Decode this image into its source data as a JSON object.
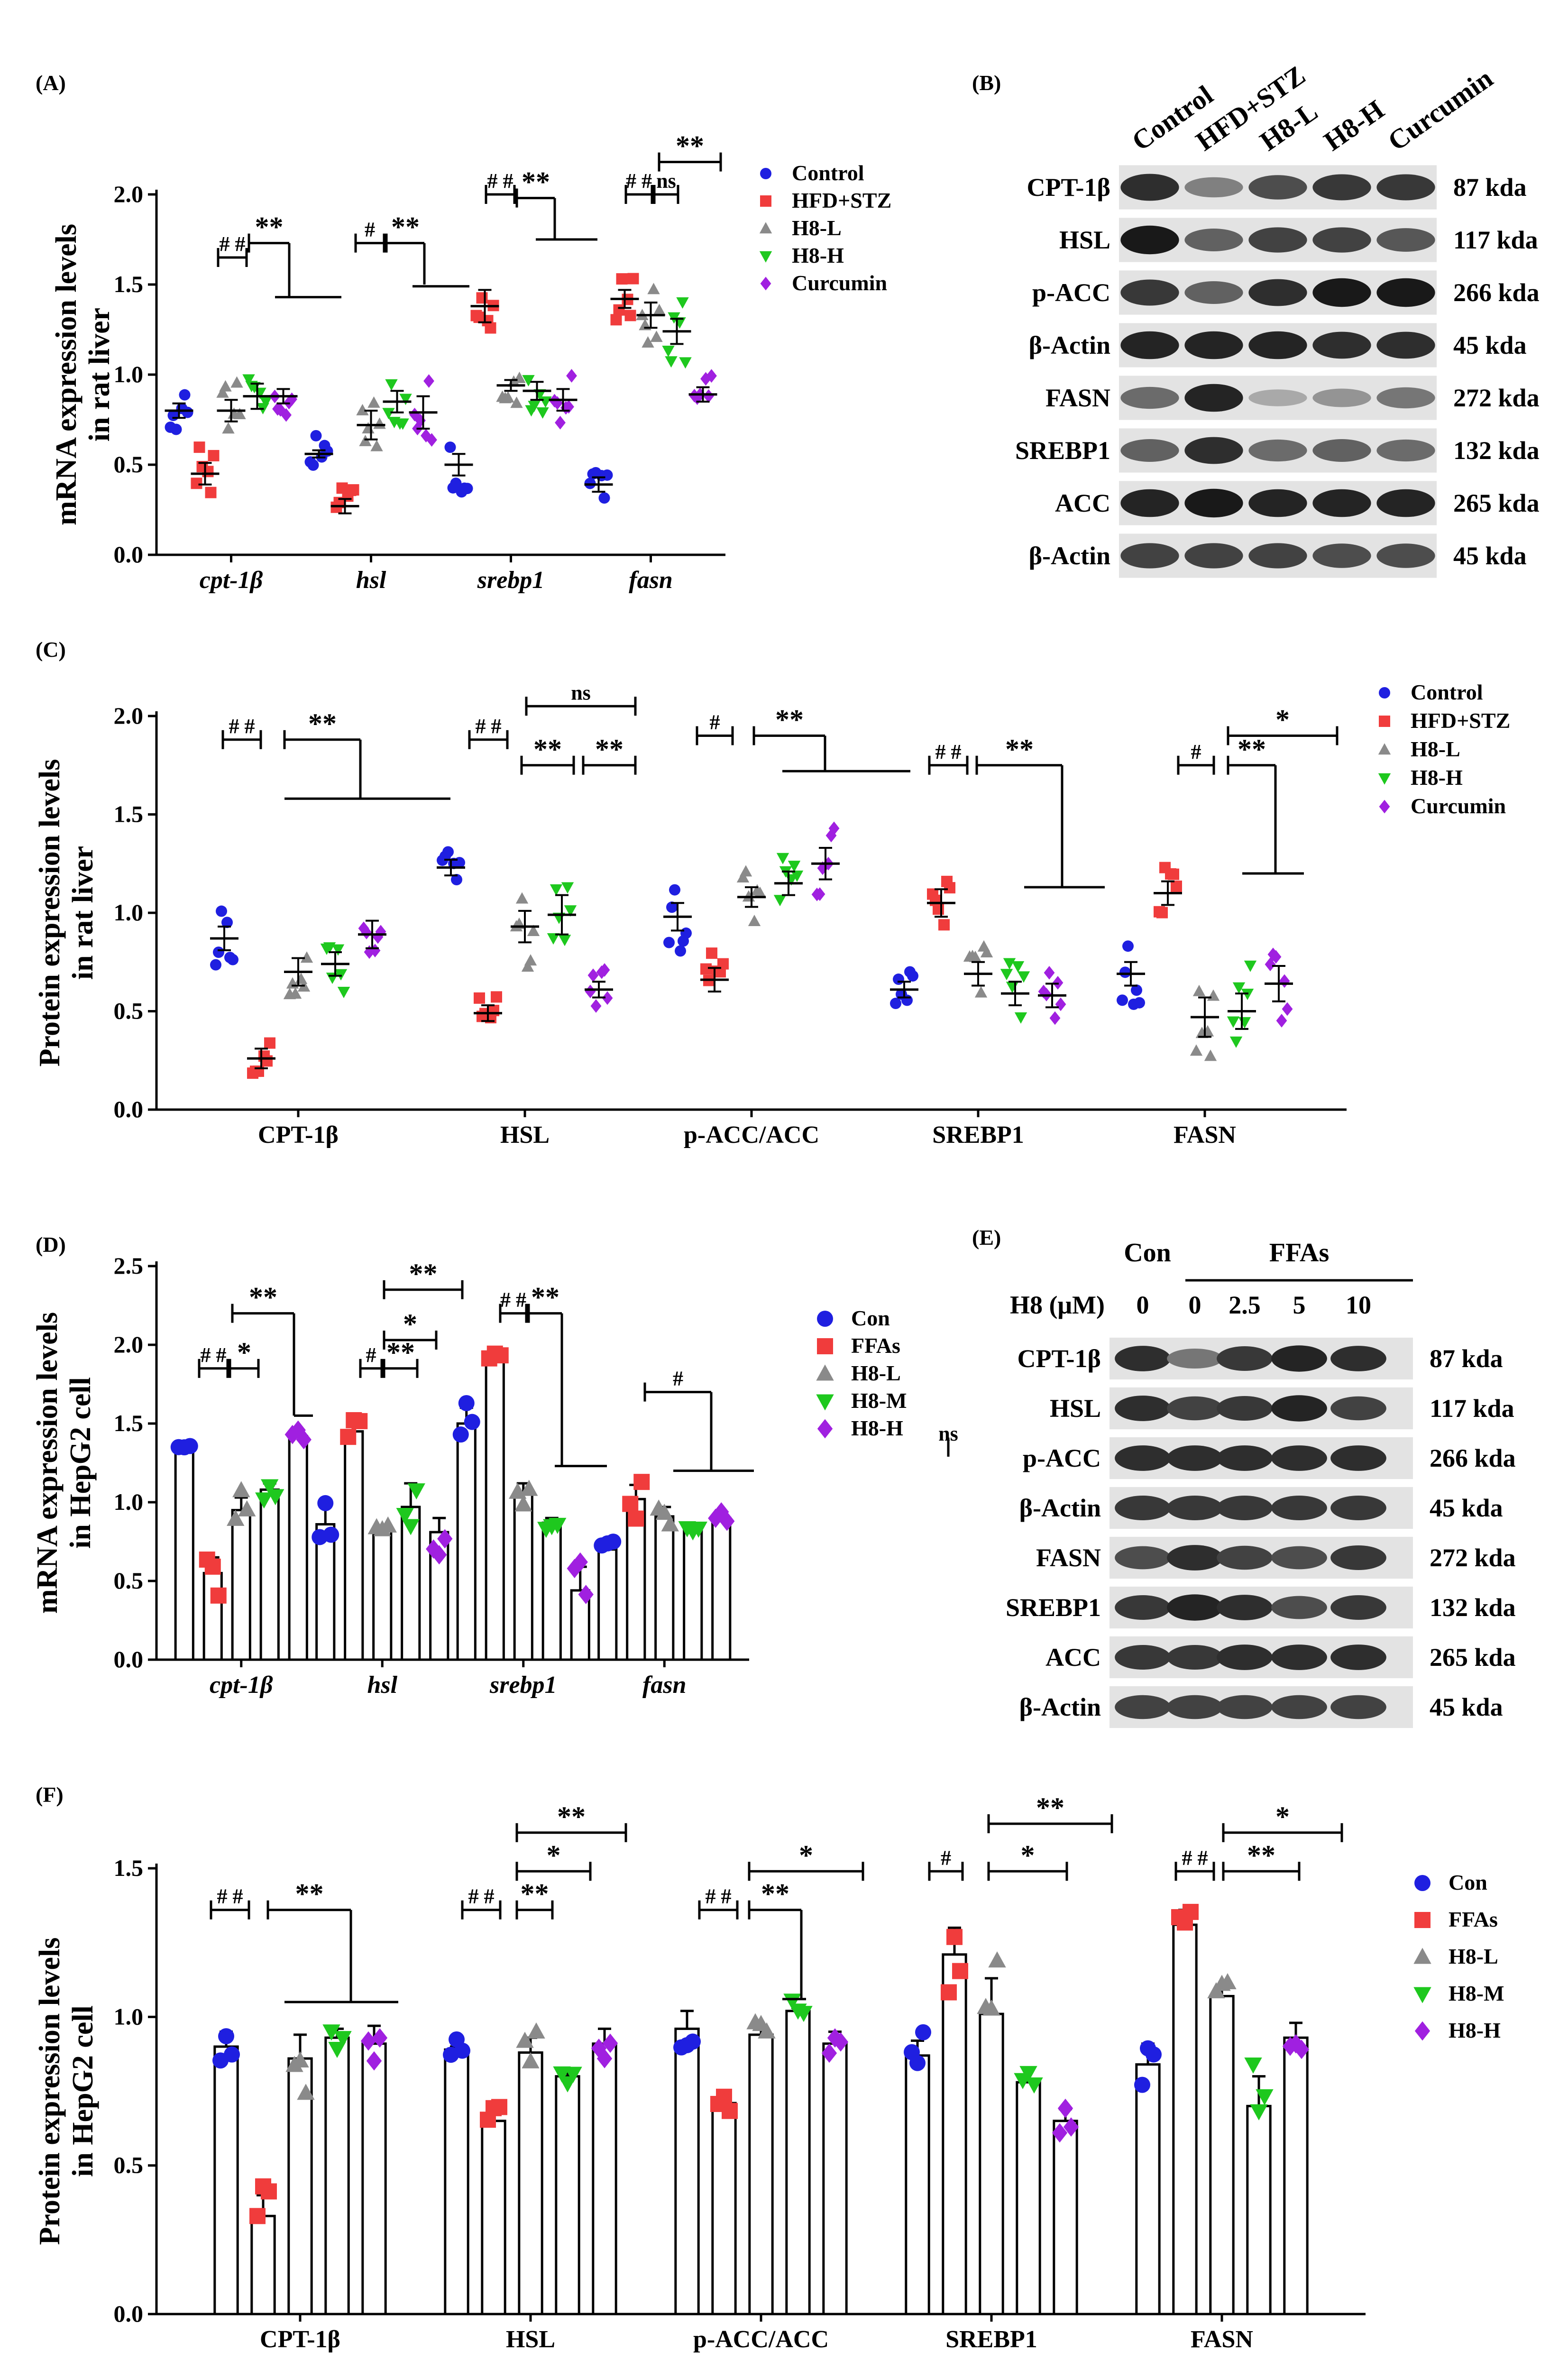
{
  "colors": {
    "control": "#1f1fe0",
    "model": "#f03c3c",
    "low": "#8a8a8a",
    "mid": "#1ec81e",
    "high": "#a020e0"
  },
  "chart_data": [
    {
      "panel": "(A)",
      "type": "scatter",
      "ylabel": [
        "mRNA expression levels",
        "in rat liver"
      ],
      "ylim": [
        0,
        2.0
      ],
      "yticks": [
        "0.0",
        "0.5",
        "1.0",
        "1.5",
        "2.0"
      ],
      "categories": [
        "cpt-1β",
        "hsl",
        "srebp1",
        "fasn"
      ],
      "groups": [
        "Control",
        "HFD+STZ",
        "H8-L",
        "H8-H",
        "Curcumin"
      ],
      "means": [
        [
          0.8,
          0.45,
          0.8,
          0.88,
          0.88
        ],
        [
          0.56,
          0.27,
          0.72,
          0.85,
          0.79
        ],
        [
          0.5,
          1.38,
          0.94,
          0.91,
          0.86
        ],
        [
          0.39,
          1.42,
          1.33,
          1.24,
          0.89
        ]
      ],
      "errs": [
        [
          0.04,
          0.06,
          0.06,
          0.07,
          0.04
        ],
        [
          0.02,
          0.04,
          0.08,
          0.06,
          0.09
        ],
        [
          0.06,
          0.09,
          0.03,
          0.05,
          0.06
        ],
        [
          0.04,
          0.05,
          0.07,
          0.07,
          0.04
        ]
      ]
    },
    {
      "panel": "(C)",
      "type": "scatter",
      "ylabel": [
        "Protein expression levels",
        "in rat liver"
      ],
      "ylim": [
        0,
        2.0
      ],
      "yticks": [
        "0.0",
        "0.5",
        "1.0",
        "1.5",
        "2.0"
      ],
      "categories": [
        "CPT-1β",
        "HSL",
        "p-ACC/ACC",
        "SREBP1",
        "FASN"
      ],
      "groups": [
        "Control",
        "HFD+STZ",
        "H8-L",
        "H8-H",
        "Curcumin"
      ],
      "means": [
        [
          0.87,
          0.26,
          0.7,
          0.74,
          0.89
        ],
        [
          1.23,
          0.49,
          0.93,
          0.99,
          0.61
        ],
        [
          0.98,
          0.66,
          1.08,
          1.15,
          1.25
        ],
        [
          0.61,
          1.05,
          0.69,
          0.59,
          0.58
        ],
        [
          0.69,
          1.1,
          0.47,
          0.5,
          0.64
        ]
      ],
      "errs": [
        [
          0.06,
          0.05,
          0.07,
          0.06,
          0.07
        ],
        [
          0.04,
          0.04,
          0.08,
          0.1,
          0.04
        ],
        [
          0.07,
          0.06,
          0.05,
          0.06,
          0.08
        ],
        [
          0.04,
          0.07,
          0.06,
          0.06,
          0.06
        ],
        [
          0.06,
          0.06,
          0.1,
          0.09,
          0.09
        ]
      ]
    },
    {
      "panel": "(D)",
      "type": "bar",
      "ylabel": [
        "mRNA expression levels",
        "in HepG2 cell"
      ],
      "ylim": [
        0,
        2.5
      ],
      "yticks": [
        "0.0",
        "0.5",
        "1.0",
        "1.5",
        "2.0",
        "2.5"
      ],
      "categories": [
        "cpt-1β",
        "hsl",
        "srebp1",
        "fasn"
      ],
      "groups": [
        "Con",
        "FFAs",
        "H8-L",
        "H8-M",
        "H8-H"
      ],
      "means": [
        [
          1.32,
          0.55,
          0.95,
          1.08,
          1.42
        ],
        [
          0.86,
          1.45,
          0.82,
          0.97,
          0.81
        ],
        [
          1.5,
          1.92,
          1.05,
          0.87,
          0.44
        ],
        [
          0.7,
          1.02,
          0.91,
          0.82,
          0.9
        ]
      ],
      "errs": [
        [
          0.02,
          0.1,
          0.08,
          0.04,
          0.03
        ],
        [
          0.12,
          0.05,
          0.03,
          0.15,
          0.09
        ],
        [
          0.1,
          0.05,
          0.07,
          0.03,
          0.15
        ],
        [
          0.05,
          0.09,
          0.06,
          0.04,
          0.03
        ]
      ]
    },
    {
      "panel": "(F)",
      "type": "bar",
      "ylabel": [
        "Protein expression levels",
        "in HepG2 cell"
      ],
      "ylim": [
        0,
        1.5
      ],
      "yticks": [
        "0.0",
        "0.5",
        "1.0",
        "1.5"
      ],
      "categories": [
        "CPT-1β",
        "HSL",
        "p-ACC/ACC",
        "SREBP1",
        "FASN"
      ],
      "groups": [
        "Con",
        "FFAs",
        "H8-L",
        "H8-M",
        "H8-H"
      ],
      "means": [
        [
          0.9,
          0.33,
          0.86,
          0.93,
          0.91
        ],
        [
          0.89,
          0.65,
          0.88,
          0.8,
          0.91
        ],
        [
          0.96,
          0.71,
          0.94,
          1.02,
          0.91
        ],
        [
          0.87,
          1.21,
          1.01,
          0.78,
          0.65
        ],
        [
          0.84,
          1.31,
          1.07,
          0.7,
          0.93
        ]
      ],
      "errs": [
        [
          0.05,
          0.07,
          0.08,
          0.03,
          0.06
        ],
        [
          0.01,
          0.03,
          0.05,
          0.02,
          0.05
        ],
        [
          0.06,
          0.01,
          0.02,
          0.01,
          0.04
        ],
        [
          0.05,
          0.09,
          0.12,
          0.01,
          0.04
        ],
        [
          0.07,
          0.05,
          0.03,
          0.1,
          0.05
        ]
      ]
    }
  ],
  "blot_B": {
    "label": "(B)",
    "lanes": [
      "Control",
      "HFD+STZ",
      "H8-L",
      "H8-H",
      "Curcumin"
    ],
    "proteins": [
      "CPT-1β",
      "HSL",
      "p-ACC",
      "β-Actin",
      "FASN",
      "SREBP1",
      "ACC",
      "β-Actin"
    ],
    "sizes": [
      "87 kda",
      "117 kda",
      "266 kda",
      "45 kda",
      "272 kda",
      "132 kda",
      "265 kda",
      "45 kda"
    ],
    "intensity": [
      [
        0.85,
        0.45,
        0.7,
        0.8,
        0.8
      ],
      [
        0.95,
        0.6,
        0.75,
        0.75,
        0.65
      ],
      [
        0.8,
        0.6,
        0.85,
        0.95,
        0.95
      ],
      [
        0.9,
        0.9,
        0.9,
        0.85,
        0.85
      ],
      [
        0.55,
        0.9,
        0.25,
        0.35,
        0.5
      ],
      [
        0.6,
        0.85,
        0.55,
        0.6,
        0.55
      ],
      [
        0.9,
        0.95,
        0.9,
        0.9,
        0.9
      ],
      [
        0.75,
        0.75,
        0.75,
        0.7,
        0.7
      ]
    ]
  },
  "blot_E": {
    "label": "(E)",
    "con_label": "Con",
    "ffa_label": "FFAs",
    "dose_label": "H8 (μM)",
    "doses": [
      "0",
      "0",
      "2.5",
      "5",
      "10"
    ],
    "proteins": [
      "CPT-1β",
      "HSL",
      "p-ACC",
      "β-Actin",
      "FASN",
      "SREBP1",
      "ACC",
      "β-Actin"
    ],
    "sizes": [
      "87 kda",
      "117 kda",
      "266 kda",
      "45 kda",
      "272 kda",
      "132 kda",
      "265 kda",
      "45 kda"
    ],
    "intensity": [
      [
        0.85,
        0.5,
        0.8,
        0.9,
        0.85
      ],
      [
        0.85,
        0.75,
        0.8,
        0.9,
        0.75
      ],
      [
        0.85,
        0.85,
        0.85,
        0.85,
        0.85
      ],
      [
        0.8,
        0.8,
        0.8,
        0.8,
        0.8
      ],
      [
        0.7,
        0.85,
        0.75,
        0.7,
        0.8
      ],
      [
        0.8,
        0.9,
        0.85,
        0.7,
        0.8
      ],
      [
        0.8,
        0.8,
        0.85,
        0.85,
        0.85
      ],
      [
        0.75,
        0.75,
        0.75,
        0.75,
        0.75
      ]
    ]
  },
  "annotations": {
    "A": [
      "# #",
      "**",
      "#",
      "**",
      "# #",
      "**",
      "# #",
      "ns",
      "**"
    ],
    "C": [
      "# #",
      "**",
      "# #",
      "**",
      "**",
      "ns",
      "#",
      "**",
      "# #",
      "**",
      "#",
      "**",
      "*"
    ],
    "D": [
      "**",
      "# #",
      "*",
      "#",
      "**",
      "*",
      "**",
      "# #",
      "**",
      "#",
      "ns"
    ],
    "F": [
      "# #",
      "**",
      "# #",
      "**",
      "*",
      "**",
      "# #",
      "**",
      "*",
      "#",
      "*",
      "**",
      "# #",
      "**",
      "*"
    ]
  }
}
